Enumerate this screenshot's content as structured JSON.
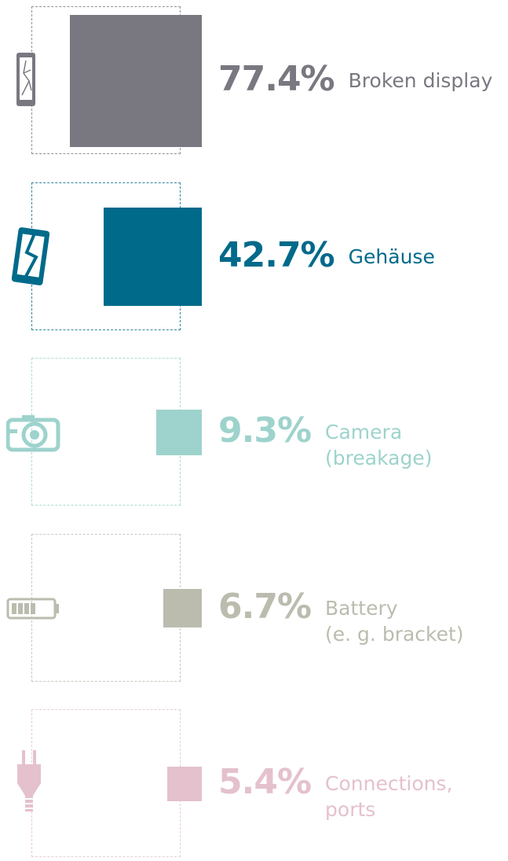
{
  "chart_data": {
    "type": "square",
    "categories": [
      "Broken display",
      "Gehäuse",
      "Camera\n(breakage)",
      "Battery\n(e. g. bracket)",
      "Connections,\nports"
    ],
    "values": [
      77.4,
      42.7,
      9.3,
      6.7,
      5.4
    ],
    "value_labels": [
      "77.4%",
      "42.7%",
      "9.3%",
      "6.7%",
      "5.4%"
    ],
    "colors": [
      "#797880",
      "#006a8a",
      "#9dd3cc",
      "#bbbcae",
      "#e4c1cd"
    ]
  }
}
